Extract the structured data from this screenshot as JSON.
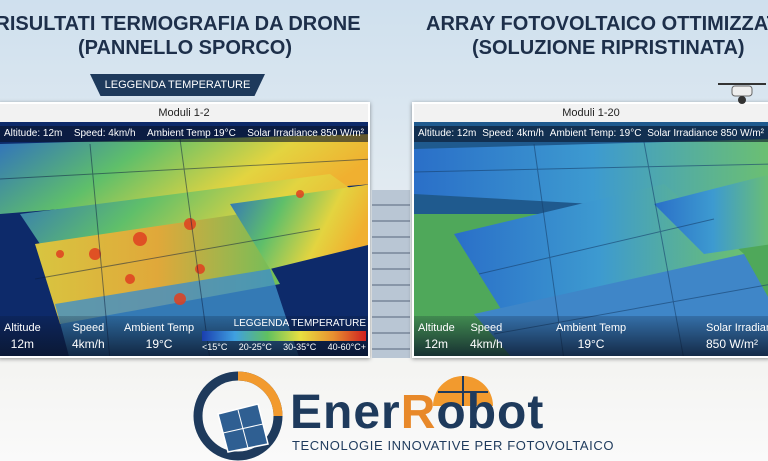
{
  "left_panel": {
    "title": "RISULTATI TERMOGRAFIA DA DRONE",
    "subtitle": "(PANNELLO SPORCO)",
    "ribbon": "LEGGENDA TEMPERATURE",
    "header": "Moduli 1-2",
    "overlay": [
      "Altitude: 12m",
      "Speed: 4km/h",
      "Ambient Temp 19°C",
      "Solar Irradiance 850 W/m²"
    ],
    "stats": [
      {
        "label": "Altitude",
        "value": "12m"
      },
      {
        "label": "Speed",
        "value": "4km/h"
      },
      {
        "label": "Ambient Temp",
        "value": "19°C"
      }
    ],
    "legend": {
      "title": "LEGGENDA TEMPERATURE",
      "items": [
        "<15°C",
        "20-25°C",
        "30-35°C",
        "40-60°C+"
      ]
    }
  },
  "right_panel": {
    "title": "ARRAY FOTOVOLTAICO OTTIMIZZATO",
    "subtitle": "(SOLUZIONE RIPRISTINATA)",
    "header": "Moduli 1-20",
    "overlay": [
      "Altitude: 12m",
      "Speed: 4km/h",
      "Ambient Temp: 19°C",
      "Solar Irradiance 850 W/m²"
    ],
    "stats": [
      {
        "label": "Altitude",
        "value": "12m"
      },
      {
        "label": "Speed",
        "value": "4km/h"
      },
      {
        "label": "Ambient Temp",
        "value": "19°C"
      },
      {
        "label": "Solar Irradiance",
        "value": "850 W/m²"
      }
    ]
  },
  "logo": {
    "brand_prefix": "Ener",
    "brand_accent": "R",
    "brand_suffix": "obot",
    "tagline": "TECNOLOGIE INNOVATIVE PER FOTOVOLTAICO"
  }
}
